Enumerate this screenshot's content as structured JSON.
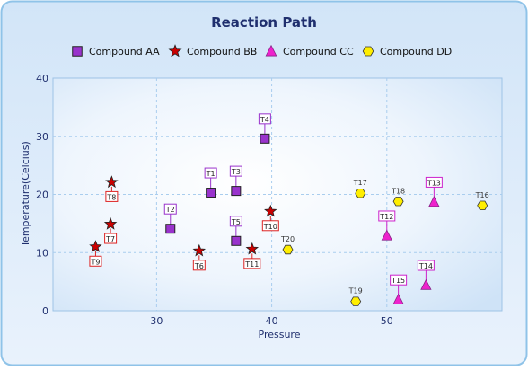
{
  "chart_data": {
    "type": "scatter",
    "title": "Reaction Path",
    "xlabel": "Pressure",
    "ylabel": "Temperature(Celcius)",
    "xlim": [
      21,
      60
    ],
    "ylim": [
      0,
      40
    ],
    "x_ticks": [
      30,
      40,
      50
    ],
    "y_ticks": [
      0,
      10,
      20,
      30,
      40
    ],
    "grid": true,
    "legend_position": "top",
    "series": [
      {
        "name": "Compound AA",
        "marker": "square",
        "color": "#9933cc",
        "label_color": "#9933cc",
        "points": [
          {
            "label": "T1",
            "x": 34.7,
            "y": 20.3
          },
          {
            "label": "T2",
            "x": 31.2,
            "y": 14.1
          },
          {
            "label": "T3",
            "x": 36.9,
            "y": 20.6
          },
          {
            "label": "T4",
            "x": 39.4,
            "y": 29.6
          },
          {
            "label": "T5",
            "x": 36.9,
            "y": 12.0
          }
        ]
      },
      {
        "name": "Compound BB",
        "marker": "star",
        "color": "#cc0000",
        "label_color": "#dd2222",
        "points": [
          {
            "label": "T6",
            "x": 33.7,
            "y": 10.3
          },
          {
            "label": "T7",
            "x": 26.0,
            "y": 14.9
          },
          {
            "label": "T8",
            "x": 26.1,
            "y": 22.1
          },
          {
            "label": "T9",
            "x": 24.7,
            "y": 11.0
          },
          {
            "label": "T10",
            "x": 39.9,
            "y": 17.1
          },
          {
            "label": "T11",
            "x": 38.3,
            "y": 10.6
          }
        ]
      },
      {
        "name": "Compound CC",
        "marker": "triangle",
        "color": "#ee22cc",
        "label_color": "#cc22cc",
        "points": [
          {
            "label": "T12",
            "x": 50.0,
            "y": 12.9
          },
          {
            "label": "T13",
            "x": 54.1,
            "y": 18.7
          },
          {
            "label": "T14",
            "x": 53.4,
            "y": 4.4
          },
          {
            "label": "T15",
            "x": 51.0,
            "y": 1.9
          }
        ]
      },
      {
        "name": "Compound DD",
        "marker": "hexagon",
        "color": "#ffee00",
        "label_color": "#333333",
        "points": [
          {
            "label": "T16",
            "x": 58.3,
            "y": 18.1
          },
          {
            "label": "T17",
            "x": 47.7,
            "y": 20.2
          },
          {
            "label": "T18",
            "x": 51.0,
            "y": 18.8
          },
          {
            "label": "T19",
            "x": 47.3,
            "y": 1.6
          },
          {
            "label": "T20",
            "x": 41.4,
            "y": 10.5
          }
        ]
      }
    ]
  }
}
